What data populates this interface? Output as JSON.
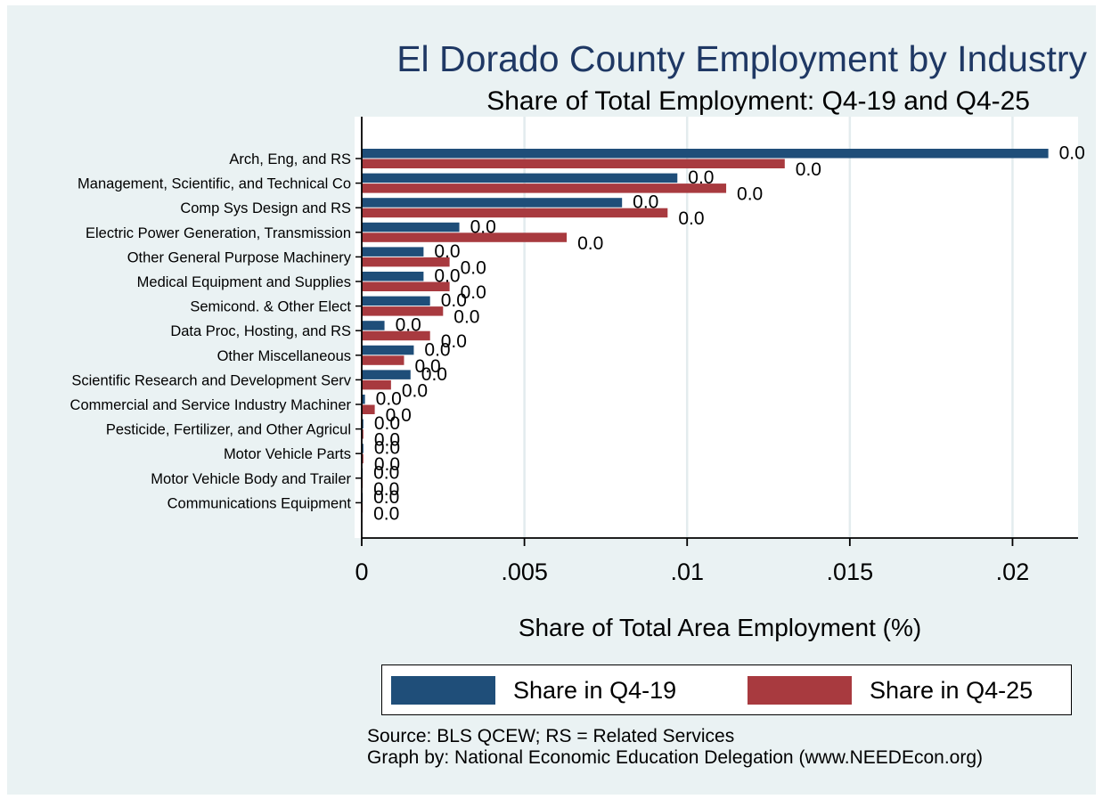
{
  "chart_data": {
    "type": "bar",
    "orientation": "horizontal",
    "title": "El Dorado County Employment by Industry",
    "subtitle": "Share of Total Employment: Q4-19 and Q4-25",
    "xlabel": "Share of Total Area Employment (%)",
    "ylabel": "",
    "xlim": [
      0,
      0.022
    ],
    "x_ticks": [
      0,
      0.005,
      0.01,
      0.015,
      0.02
    ],
    "x_tick_labels": [
      "0",
      ".005",
      ".01",
      ".015",
      ".02"
    ],
    "grid": true,
    "legend_position": "bottom",
    "categories": [
      "Arch, Eng, and RS",
      "Management, Scientific, and Technical Co",
      "Comp Sys Design and RS",
      "Electric Power Generation, Transmission ",
      "Other General Purpose Machinery",
      "Medical Equipment and Supplies",
      "Semicond. & Other Elect",
      "Data Proc, Hosting, and RS",
      "Other Miscellaneous",
      "Scientific Research and Development Serv",
      "Commercial and Service Industry Machiner",
      "Pesticide, Fertilizer, and Other Agricul",
      "Motor Vehicle Parts",
      "Motor Vehicle Body and Trailer",
      "Communications Equipment"
    ],
    "series": [
      {
        "name": "Share in Q4-19",
        "color": "#1f4e79",
        "values": [
          0.0211,
          0.0097,
          0.008,
          0.003,
          0.0019,
          0.0019,
          0.0021,
          0.0007,
          0.0016,
          0.0015,
          0.0001,
          5e-05,
          5e-05,
          3e-05,
          3e-05
        ],
        "data_labels": [
          "0.0",
          "0.0",
          "0.0",
          "0.0",
          "0.0",
          "0.0",
          "0.0",
          "0.0",
          "0.0",
          "0.0",
          "0.0",
          "0.0",
          "0.0",
          "0.0",
          "0.0"
        ]
      },
      {
        "name": "Share in Q4-25",
        "color": "#a83a3f",
        "values": [
          0.013,
          0.0112,
          0.0094,
          0.0063,
          0.0027,
          0.0027,
          0.0025,
          0.0021,
          0.0013,
          0.0009,
          0.0004,
          5e-05,
          5e-05,
          3e-05,
          3e-05
        ],
        "data_labels": [
          "0.0",
          "0.0",
          "0.0",
          "0.0",
          "0.0",
          "0.0",
          "0.0",
          "0.0",
          "0.0",
          "0.0",
          "0.0",
          "0.0",
          "0.0",
          "0.0",
          "0.0"
        ]
      }
    ]
  },
  "legend": {
    "q19_label": "Share in Q4-19",
    "q25_label": "Share in Q4-25"
  },
  "footer": {
    "source": "Source: BLS QCEW; RS = Related Services",
    "credit": "Graph by: National Economic Education Delegation (www.NEEDEcon.org)"
  },
  "colors": {
    "q19": "#1f4e79",
    "q25": "#a83a3f",
    "title": "#1f3864",
    "background": "#eaf2f3"
  }
}
